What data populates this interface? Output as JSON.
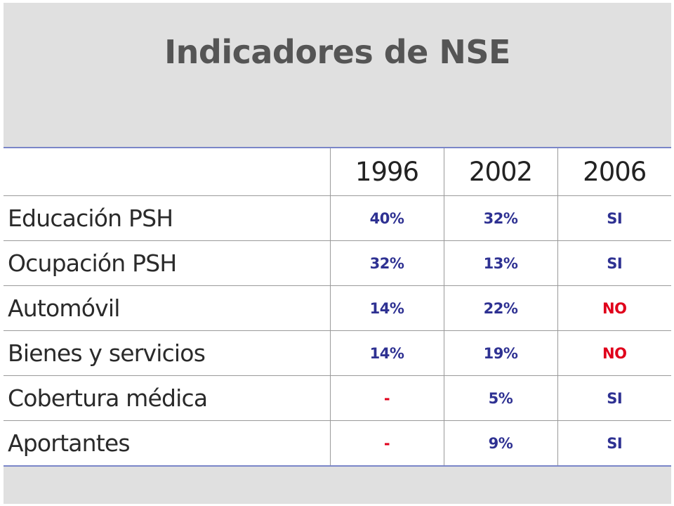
{
  "title": "Indicadores de NSE",
  "colors": {
    "blue_value": "#2e3192",
    "red_value": "#e0001b",
    "panel_background": "#e0e0e0",
    "header_rule": "#7a86c8"
  },
  "table": {
    "columns": [
      "",
      "1996",
      "2002",
      "2006"
    ],
    "rows": [
      {
        "label": "Educación  PSH",
        "values": [
          "40%",
          "32%",
          "SI"
        ],
        "colors": [
          "blue",
          "blue",
          "blue"
        ]
      },
      {
        "label": "Ocupación PSH",
        "values": [
          "32%",
          "13%",
          "SI"
        ],
        "colors": [
          "blue",
          "blue",
          "blue"
        ]
      },
      {
        "label": "Automóvil",
        "values": [
          "14%",
          "22%",
          "NO"
        ],
        "colors": [
          "blue",
          "blue",
          "red"
        ]
      },
      {
        "label": "Bienes y servicios",
        "values": [
          "14%",
          "19%",
          "NO"
        ],
        "colors": [
          "blue",
          "blue",
          "red"
        ]
      },
      {
        "label": "Cobertura médica",
        "values": [
          "-",
          "5%",
          "SI"
        ],
        "colors": [
          "red",
          "blue",
          "blue"
        ]
      },
      {
        "label": "Aportantes",
        "values": [
          "-",
          "9%",
          "SI"
        ],
        "colors": [
          "red",
          "blue",
          "blue"
        ]
      }
    ]
  }
}
